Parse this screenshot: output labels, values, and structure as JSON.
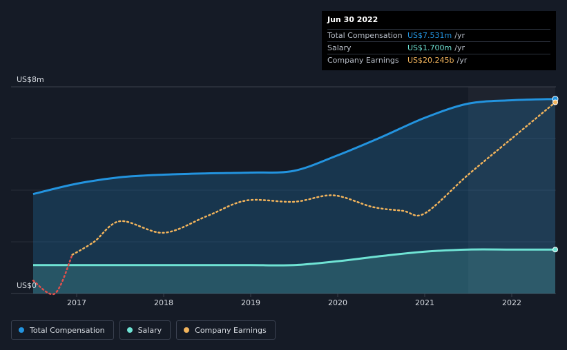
{
  "colors": {
    "background": "#151b26",
    "total_compensation": "#2394df",
    "salary": "#6fe3d4",
    "company_earnings": "#f2b45c",
    "earnings_negative": "#e0504c"
  },
  "tooltip": {
    "date": "Jun 30 2022",
    "rows": [
      {
        "label": "Total Compensation",
        "value": "US$7.531m",
        "unit": "/yr",
        "color": "#2394df"
      },
      {
        "label": "Salary",
        "value": "US$1.700m",
        "unit": "/yr",
        "color": "#6fe3d4"
      },
      {
        "label": "Company Earnings",
        "value": "US$20.245b",
        "unit": "/yr",
        "color": "#f2b45c"
      }
    ]
  },
  "legend": [
    {
      "label": "Total Compensation",
      "color": "#2394df"
    },
    {
      "label": "Salary",
      "color": "#6fe3d4"
    },
    {
      "label": "Company Earnings",
      "color": "#f2b45c"
    }
  ],
  "chart_data": {
    "type": "area",
    "y_top_label": "US$8m",
    "y_bottom_label": "US$0",
    "ylim": [
      0,
      8
    ],
    "xlim": [
      2016.5,
      2022.5
    ],
    "x_ticks": [
      2017,
      2018,
      2019,
      2020,
      2021,
      2022
    ],
    "x_tick_labels": [
      "2017",
      "2018",
      "2019",
      "2020",
      "2021",
      "2022"
    ],
    "grid": true,
    "highlight_start": 2021.5,
    "legend_position": "bottom-left",
    "series": [
      {
        "name": "Total Compensation",
        "unit": "US$m",
        "x": [
          2016.5,
          2017.0,
          2017.5,
          2018.0,
          2018.5,
          2019.0,
          2019.5,
          2020.0,
          2020.5,
          2021.0,
          2021.5,
          2022.0,
          2022.5
        ],
        "y": [
          3.85,
          4.25,
          4.5,
          4.6,
          4.65,
          4.68,
          4.75,
          5.35,
          6.05,
          6.8,
          7.35,
          7.48,
          7.531
        ]
      },
      {
        "name": "Salary",
        "unit": "US$m",
        "x": [
          2016.5,
          2017.0,
          2017.5,
          2018.0,
          2018.5,
          2019.0,
          2019.5,
          2020.0,
          2020.5,
          2021.0,
          2021.5,
          2022.0,
          2022.5
        ],
        "y": [
          1.1,
          1.1,
          1.1,
          1.1,
          1.1,
          1.1,
          1.1,
          1.25,
          1.45,
          1.62,
          1.7,
          1.7,
          1.7
        ]
      },
      {
        "name": "Company Earnings",
        "unit": "relative",
        "x": [
          2016.5,
          2016.75,
          2016.95,
          2017.2,
          2017.5,
          2018.0,
          2018.5,
          2018.95,
          2019.5,
          2019.95,
          2020.4,
          2020.75,
          2021.0,
          2021.5,
          2022.0,
          2022.5
        ],
        "y": [
          0.5,
          0.0,
          1.5,
          2.0,
          2.8,
          2.35,
          3.0,
          3.6,
          3.55,
          3.8,
          3.35,
          3.2,
          3.1,
          4.6,
          6.0,
          7.4
        ]
      }
    ]
  }
}
